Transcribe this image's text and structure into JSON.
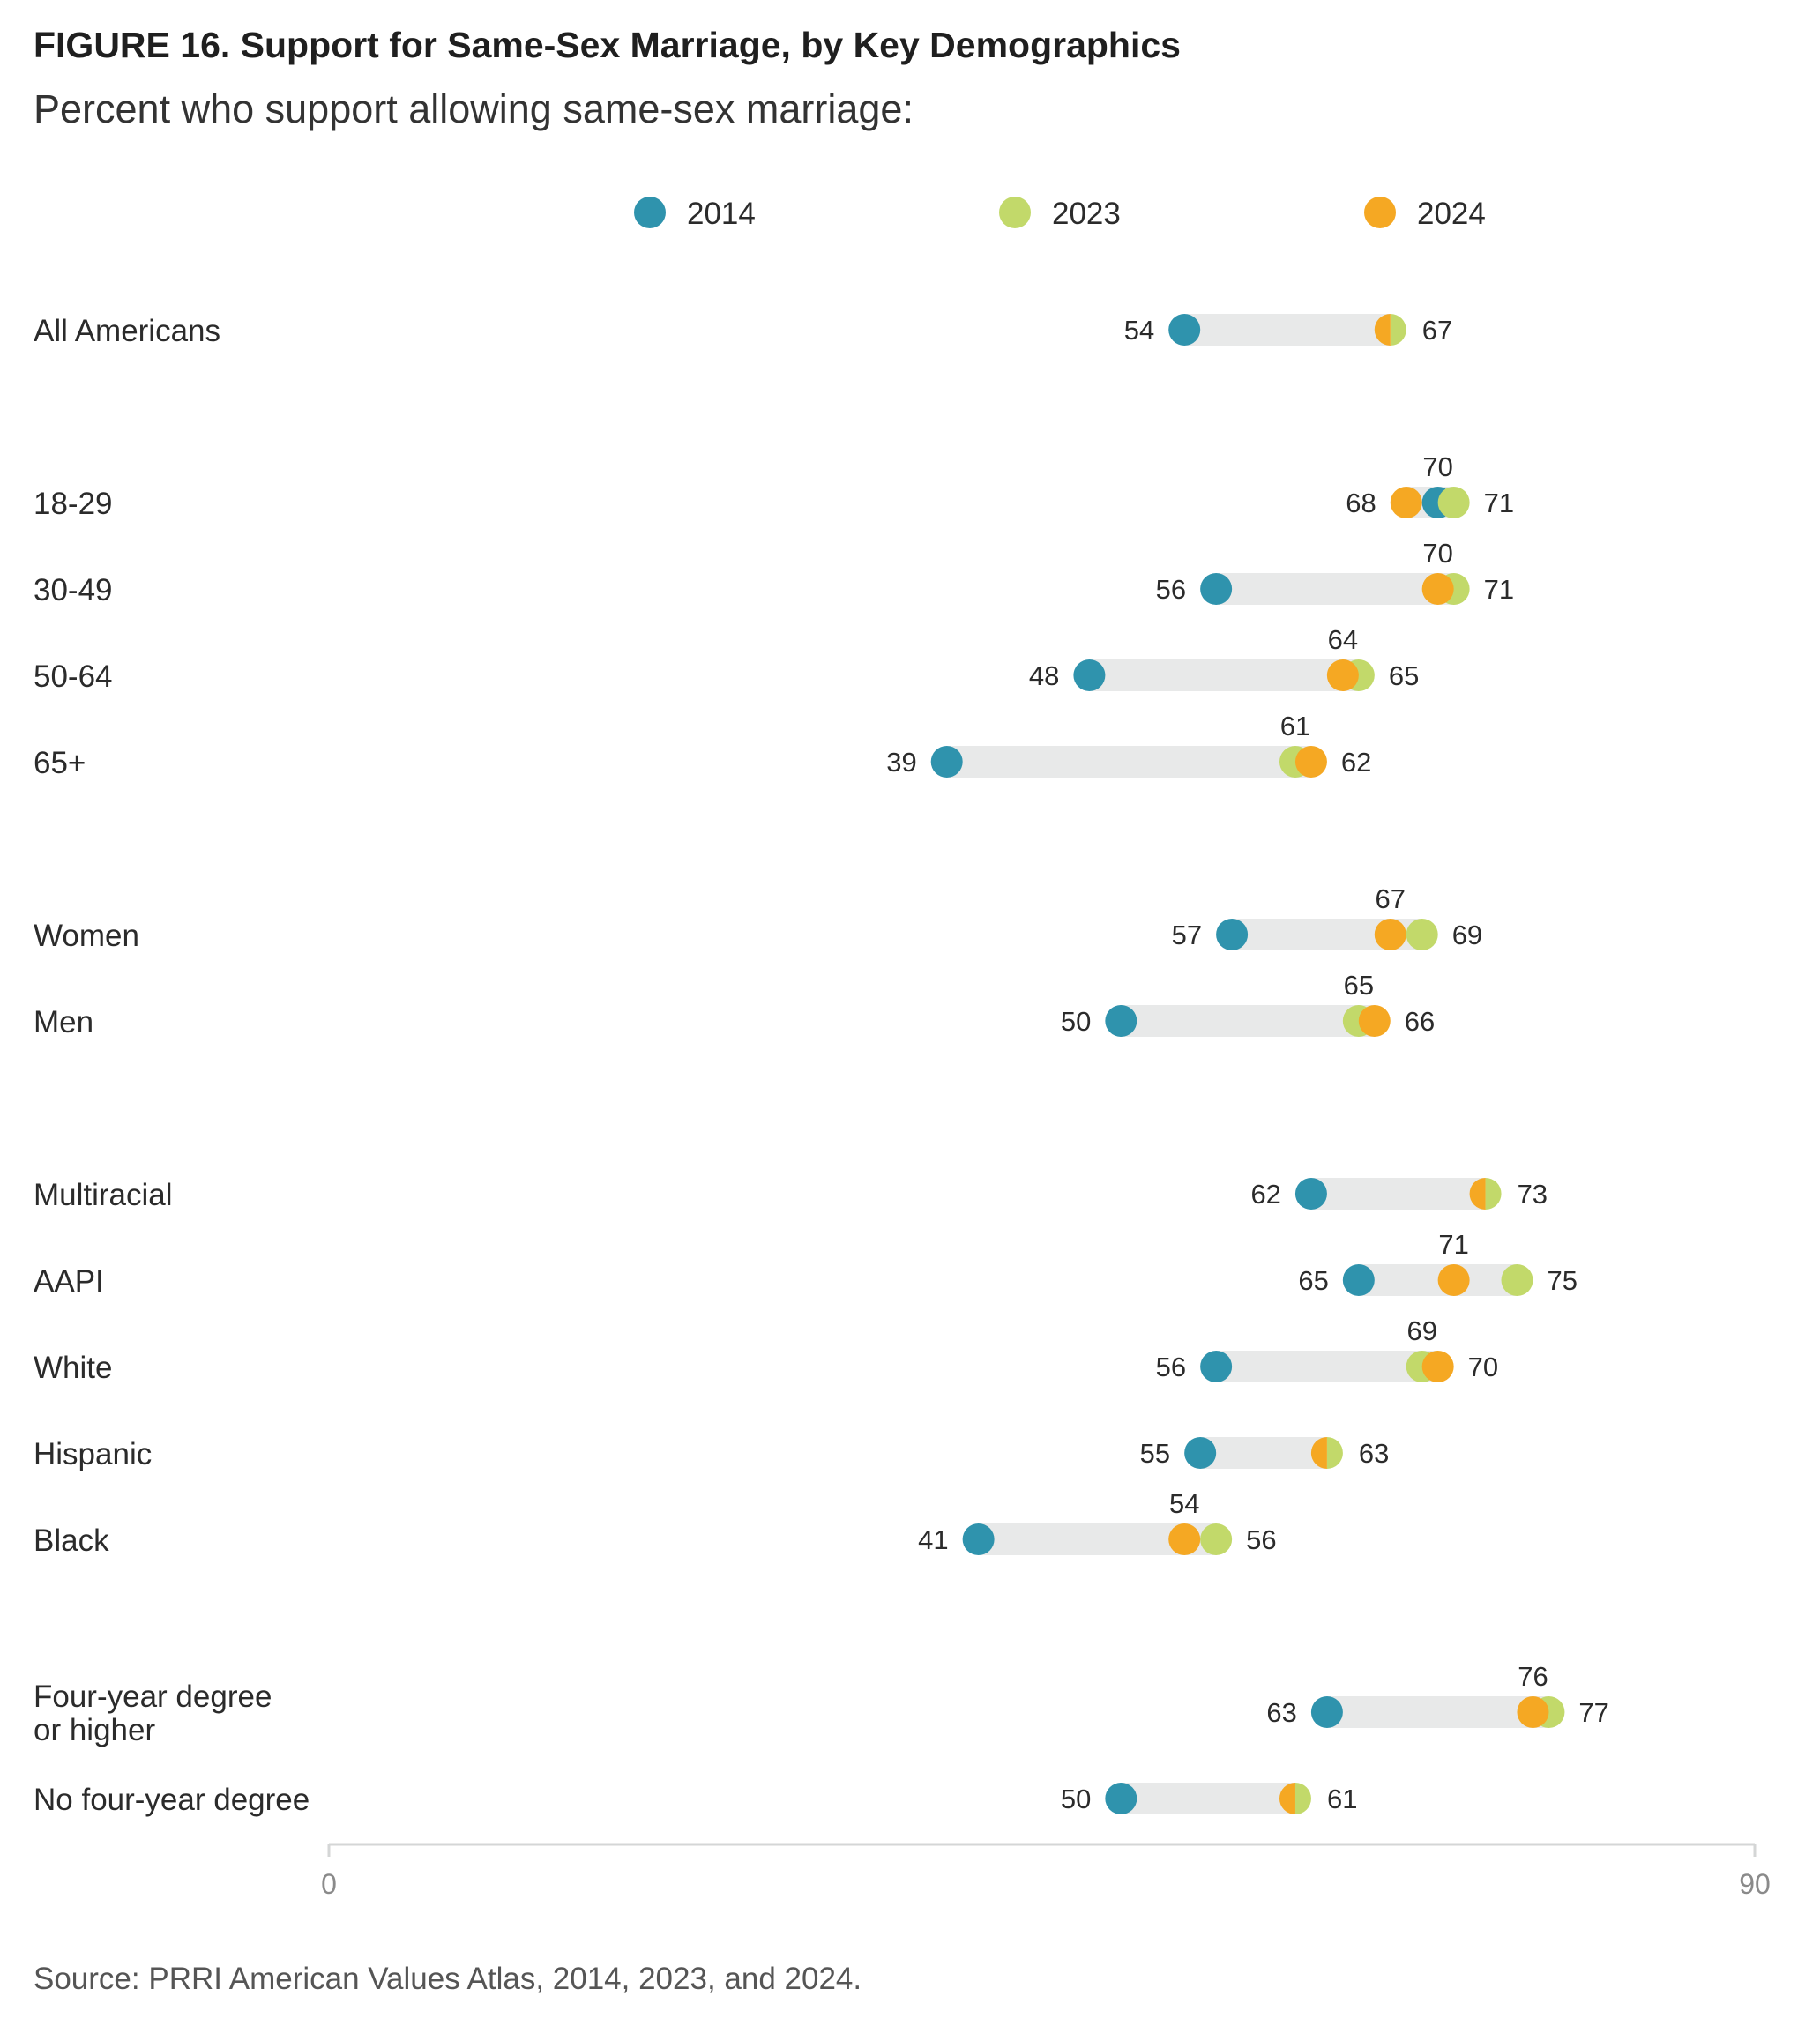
{
  "header": {
    "title": "FIGURE 16.  Support for Same-Sex Marriage, by Key Demographics",
    "subtitle": "Percent who support allowing same-sex marriage:"
  },
  "footer": {
    "source": "Source: PRRI American Values Atlas, 2014, 2023, and 2024."
  },
  "chart_data": {
    "type": "dot-range",
    "xlim": [
      0,
      90
    ],
    "x_ticks": [
      "0",
      "90"
    ],
    "grid": false,
    "legend_position": "top-center",
    "series": [
      {
        "name": "2014",
        "color": "#2f93ad"
      },
      {
        "name": "2023",
        "color": "#c2d96a"
      },
      {
        "name": "2024",
        "color": "#f5a823"
      }
    ],
    "categories": [
      {
        "label": [
          "All Americans"
        ],
        "group": 0,
        "values": {
          "2014": 54,
          "2023": 67,
          "2024": 67
        }
      },
      {
        "label": [
          "18-29"
        ],
        "group": 1,
        "values": {
          "2014": 70,
          "2023": 71,
          "2024": 68
        }
      },
      {
        "label": [
          "30-49"
        ],
        "group": 1,
        "values": {
          "2014": 56,
          "2023": 71,
          "2024": 70
        }
      },
      {
        "label": [
          "50-64"
        ],
        "group": 1,
        "values": {
          "2014": 48,
          "2023": 65,
          "2024": 64
        }
      },
      {
        "label": [
          "65+"
        ],
        "group": 1,
        "values": {
          "2014": 39,
          "2023": 61,
          "2024": 62
        }
      },
      {
        "label": [
          "Women"
        ],
        "group": 2,
        "values": {
          "2014": 57,
          "2023": 69,
          "2024": 67
        }
      },
      {
        "label": [
          "Men"
        ],
        "group": 2,
        "values": {
          "2014": 50,
          "2023": 65,
          "2024": 66
        }
      },
      {
        "label": [
          "Multiracial"
        ],
        "group": 3,
        "values": {
          "2014": 62,
          "2023": 73,
          "2024": 73
        }
      },
      {
        "label": [
          "AAPI"
        ],
        "group": 3,
        "values": {
          "2014": 65,
          "2023": 75,
          "2024": 71
        }
      },
      {
        "label": [
          "White"
        ],
        "group": 3,
        "values": {
          "2014": 56,
          "2023": 69,
          "2024": 70
        }
      },
      {
        "label": [
          "Hispanic"
        ],
        "group": 3,
        "values": {
          "2014": 55,
          "2023": 63,
          "2024": 63
        }
      },
      {
        "label": [
          "Black"
        ],
        "group": 3,
        "values": {
          "2014": 41,
          "2023": 56,
          "2024": 54
        }
      },
      {
        "label": [
          "Four-year degree",
          "or higher"
        ],
        "group": 4,
        "values": {
          "2014": 63,
          "2023": 77,
          "2024": 76
        }
      },
      {
        "label": [
          "No four-year degree"
        ],
        "group": 4,
        "values": {
          "2014": 50,
          "2023": 61,
          "2024": 61
        }
      }
    ]
  }
}
